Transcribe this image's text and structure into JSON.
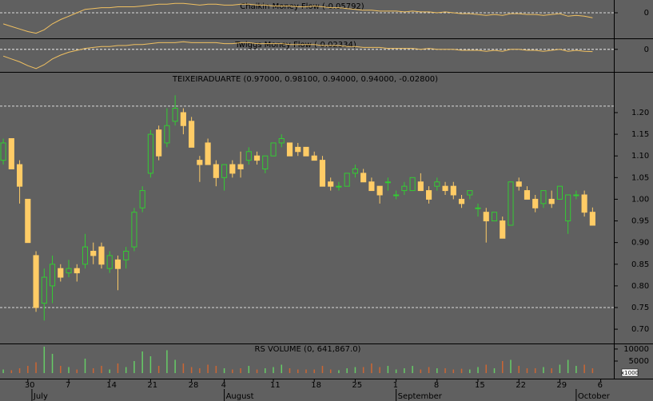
{
  "chart_data": [
    {
      "type": "line",
      "title": "Chaikin Money Flow (-0.05792)",
      "xlim": [
        -0.4,
        74.6
      ],
      "ylim": [
        -0.3,
        0.15
      ],
      "yticks": [
        0
      ],
      "grid": true,
      "series": [
        {
          "color": "#f0c060",
          "values": [
            -0.13,
            -0.16,
            -0.19,
            -0.22,
            -0.24,
            -0.2,
            -0.13,
            -0.08,
            -0.04,
            0.0,
            0.04,
            0.05,
            0.06,
            0.06,
            0.07,
            0.07,
            0.07,
            0.08,
            0.09,
            0.1,
            0.1,
            0.11,
            0.11,
            0.1,
            0.09,
            0.1,
            0.1,
            0.09,
            0.09,
            0.1,
            0.1,
            0.09,
            0.09,
            0.08,
            0.08,
            0.08,
            0.07,
            0.07,
            0.08,
            0.07,
            0.06,
            0.06,
            0.05,
            0.04,
            0.03,
            0.03,
            0.02,
            0.02,
            0.02,
            0.01,
            0.02,
            0.01,
            0.01,
            0.0,
            0.01,
            0.0,
            -0.01,
            -0.01,
            -0.02,
            -0.03,
            -0.02,
            -0.03,
            -0.01,
            -0.01,
            -0.02,
            -0.02,
            -0.03,
            -0.02,
            -0.01,
            -0.04,
            -0.03,
            -0.04,
            -0.05792
          ]
        }
      ]
    },
    {
      "type": "line",
      "title": "Twiggs Money Flow (-0.02334)",
      "xlim": [
        -0.4,
        74.6
      ],
      "ylim": [
        -0.235,
        0.115
      ],
      "yticks": [
        0
      ],
      "grid": true,
      "series": [
        {
          "color": "#f0c060",
          "values": [
            -0.07,
            -0.1,
            -0.13,
            -0.17,
            -0.2,
            -0.16,
            -0.1,
            -0.06,
            -0.03,
            -0.01,
            0.01,
            0.02,
            0.03,
            0.03,
            0.04,
            0.04,
            0.05,
            0.05,
            0.06,
            0.07,
            0.07,
            0.07,
            0.08,
            0.07,
            0.07,
            0.07,
            0.07,
            0.06,
            0.06,
            0.07,
            0.07,
            0.06,
            0.06,
            0.06,
            0.06,
            0.05,
            0.05,
            0.05,
            0.05,
            0.04,
            0.04,
            0.04,
            0.03,
            0.03,
            0.02,
            0.02,
            0.02,
            0.01,
            0.01,
            0.01,
            0.01,
            0.0,
            0.01,
            0.0,
            0.0,
            0.0,
            -0.01,
            -0.01,
            -0.01,
            -0.02,
            -0.01,
            -0.02,
            0.0,
            0.0,
            -0.01,
            -0.01,
            -0.02,
            -0.01,
            0.0,
            -0.02,
            -0.01,
            -0.02,
            -0.02334
          ]
        }
      ]
    },
    {
      "type": "candlestick",
      "title": "TEIXEIRADUARTE (0.97000, 0.98100, 0.94000, 0.94000, -0.02800)",
      "xlim": [
        -0.4,
        74.6
      ],
      "ylim": [
        0.667,
        1.294
      ],
      "yticks": [
        {
          "value": 0.7,
          "label": "0.70"
        },
        {
          "value": 0.75,
          "label": "0.75"
        },
        {
          "value": 0.8,
          "label": "0.80"
        },
        {
          "value": 0.85,
          "label": "0.85"
        },
        {
          "value": 0.9,
          "label": "0.90"
        },
        {
          "value": 0.95,
          "label": "0.95"
        },
        {
          "value": 1.0,
          "label": "1.00"
        },
        {
          "value": 1.05,
          "label": "1.05"
        },
        {
          "value": 1.1,
          "label": "1.10"
        },
        {
          "value": 1.15,
          "label": "1.15"
        },
        {
          "value": 1.2,
          "label": "1.20"
        }
      ],
      "hlines": [
        1.215,
        0.75
      ],
      "up_color": "#33cc33",
      "down_color": "#ffcc66",
      "open": [
        1.09,
        1.14,
        1.08,
        1.0,
        0.87,
        0.76,
        0.8,
        0.84,
        0.83,
        0.84,
        0.85,
        0.88,
        0.89,
        0.84,
        0.86,
        0.86,
        0.89,
        0.98,
        1.06,
        1.16,
        1.13,
        1.18,
        1.2,
        1.18,
        1.09,
        1.13,
        1.08,
        1.05,
        1.08,
        1.08,
        1.09,
        1.1,
        1.07,
        1.1,
        1.13,
        1.13,
        1.12,
        1.12,
        1.1,
        1.09,
        1.04,
        1.03,
        1.03,
        1.06,
        1.06,
        1.04,
        1.03,
        1.04,
        1.01,
        1.02,
        1.02,
        1.04,
        1.02,
        1.03,
        1.03,
        1.03,
        1.0,
        1.01,
        0.98,
        0.97,
        0.95,
        0.95,
        0.94,
        1.04,
        1.02,
        1.0,
        0.99,
        1.0,
        1.0,
        0.95,
        1.01,
        1.01,
        0.97
      ],
      "high": [
        1.14,
        1.14,
        1.09,
        1.0,
        0.88,
        0.84,
        0.87,
        0.85,
        0.86,
        0.85,
        0.92,
        0.9,
        0.9,
        0.88,
        0.87,
        0.89,
        0.98,
        1.03,
        1.16,
        1.17,
        1.21,
        1.24,
        1.21,
        1.19,
        1.1,
        1.14,
        1.09,
        1.08,
        1.09,
        1.11,
        1.12,
        1.11,
        1.1,
        1.13,
        1.15,
        1.13,
        1.13,
        1.12,
        1.11,
        1.1,
        1.05,
        1.04,
        1.06,
        1.08,
        1.07,
        1.05,
        1.03,
        1.05,
        1.02,
        1.04,
        1.05,
        1.06,
        1.03,
        1.05,
        1.04,
        1.04,
        1.01,
        1.02,
        0.99,
        0.98,
        0.97,
        0.96,
        1.04,
        1.05,
        1.03,
        1.01,
        1.02,
        1.02,
        1.03,
        1.01,
        1.02,
        1.02,
        0.981
      ],
      "low": [
        1.08,
        1.07,
        0.99,
        0.9,
        0.74,
        0.72,
        0.76,
        0.81,
        0.82,
        0.81,
        0.84,
        0.85,
        0.84,
        0.83,
        0.79,
        0.84,
        0.88,
        0.97,
        1.05,
        1.09,
        1.12,
        1.17,
        1.15,
        1.12,
        1.04,
        1.08,
        1.03,
        1.02,
        1.05,
        1.05,
        1.08,
        1.08,
        1.06,
        1.1,
        1.12,
        1.1,
        1.1,
        1.1,
        1.09,
        1.03,
        1.02,
        1.02,
        1.03,
        1.05,
        1.04,
        1.02,
        0.99,
        1.02,
        1.0,
        1.01,
        1.02,
        1.02,
        0.99,
        1.02,
        1.01,
        1.0,
        0.98,
        1.0,
        0.96,
        0.9,
        0.95,
        0.91,
        0.94,
        1.02,
        1.0,
        0.97,
        0.98,
        0.98,
        1.0,
        0.92,
        1.0,
        0.96,
        0.94
      ],
      "close": [
        1.13,
        1.07,
        1.03,
        0.9,
        0.75,
        0.82,
        0.85,
        0.82,
        0.84,
        0.83,
        0.89,
        0.87,
        0.85,
        0.87,
        0.84,
        0.88,
        0.97,
        1.02,
        1.15,
        1.1,
        1.17,
        1.21,
        1.17,
        1.12,
        1.08,
        1.08,
        1.05,
        1.08,
        1.06,
        1.07,
        1.11,
        1.09,
        1.1,
        1.13,
        1.14,
        1.1,
        1.11,
        1.1,
        1.09,
        1.03,
        1.03,
        1.03,
        1.06,
        1.07,
        1.04,
        1.02,
        1.01,
        1.04,
        1.01,
        1.03,
        1.05,
        1.02,
        1.0,
        1.04,
        1.02,
        1.01,
        0.99,
        1.02,
        0.98,
        0.95,
        0.97,
        0.91,
        1.04,
        1.03,
        1.0,
        0.98,
        1.02,
        0.99,
        1.03,
        1.01,
        1.01,
        0.97,
        0.94
      ]
    },
    {
      "type": "volume",
      "title": "RS VOLUME (0, 641,867.0)",
      "xlim": [
        -0.4,
        74.6
      ],
      "ylim": [
        -2300,
        12300
      ],
      "yticks": [
        5000,
        10000
      ],
      "unit_label": "x1000",
      "values": [
        1500,
        1200,
        2000,
        3000,
        4500,
        11000,
        8000,
        3000,
        2500,
        1500,
        6000,
        2000,
        3000,
        1500,
        4000,
        2500,
        5000,
        9000,
        7000,
        3000,
        9500,
        5500,
        4000,
        2500,
        2000,
        3500,
        3000,
        2000,
        1500,
        2000,
        3000,
        1500,
        2000,
        2500,
        3500,
        2000,
        1500,
        1500,
        1500,
        3000,
        1500,
        1200,
        2000,
        2500,
        2500,
        4000,
        2500,
        3000,
        1500,
        2000,
        3000,
        1500,
        2500,
        2000,
        2000,
        1500,
        1800,
        1500,
        2500,
        3500,
        2000,
        5000,
        5500,
        3000,
        2000,
        2000,
        2500,
        2000,
        3500,
        5500,
        3000,
        3500,
        2000
      ],
      "up_color": "#66cc66",
      "down_color": "#cc6633",
      "xticks": [
        {
          "value": 3,
          "label": "30"
        },
        {
          "value": 8,
          "label": "7"
        },
        {
          "value": 13,
          "label": "14"
        },
        {
          "value": 18,
          "label": "21"
        },
        {
          "value": 23,
          "label": "28"
        },
        {
          "value": 27,
          "label": "4"
        },
        {
          "value": 33,
          "label": "11"
        },
        {
          "value": 38,
          "label": "18"
        },
        {
          "value": 43,
          "label": "25"
        },
        {
          "value": 48,
          "label": "1"
        },
        {
          "value": 53,
          "label": "8"
        },
        {
          "value": 58,
          "label": "15"
        },
        {
          "value": 63,
          "label": "22"
        },
        {
          "value": 68,
          "label": "29"
        },
        {
          "value": 73,
          "label": "6"
        }
      ],
      "month_ticks": [
        {
          "value": 3.5,
          "label": "July"
        },
        {
          "value": 27,
          "label": "August"
        },
        {
          "value": 48,
          "label": "September"
        },
        {
          "value": 70,
          "label": "October"
        }
      ]
    }
  ]
}
